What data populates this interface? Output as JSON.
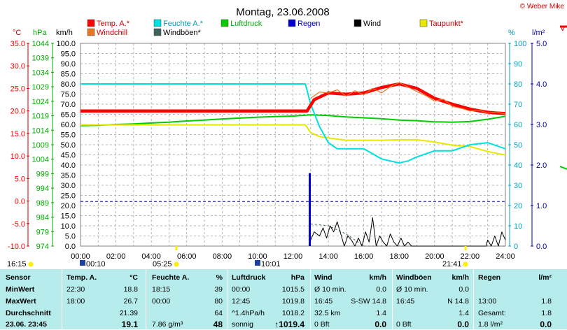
{
  "header": {
    "title": "Montag, 23.06.2008",
    "copyright": "© Weber Mike"
  },
  "legend": [
    {
      "label": "Temp. A.*",
      "color": "#ff0000"
    },
    {
      "label": "Feuchte A.*",
      "color": "#00e0e0"
    },
    {
      "label": "Luftdruck",
      "color": "#00cc00"
    },
    {
      "label": "Regen",
      "color": "#0000cc"
    },
    {
      "label": "Wind",
      "color": "#000000"
    },
    {
      "label": "Taupunkt*",
      "color": "#e8e800"
    },
    {
      "label": "Windchill",
      "color": "#e87722"
    },
    {
      "label": "Windböen*",
      "color": "#406060"
    }
  ],
  "axes": {
    "temp": {
      "unit": "°C",
      "ticks": [
        "35.0",
        "30.0",
        "25.0",
        "20.0",
        "15.0",
        "10.0",
        "5.0",
        "0.0",
        "-5.0",
        "-10.0"
      ],
      "color": "#ff0000"
    },
    "pressure": {
      "unit": "hPa",
      "ticks": [
        "1044",
        "1039",
        "1034",
        "1029",
        "1024",
        "1019",
        "1014",
        "1009",
        "1004",
        "999",
        "994",
        "989",
        "984",
        "979",
        "974"
      ],
      "color": "#00aa00"
    },
    "wind": {
      "unit": "km/h",
      "ticks": [
        "100.0",
        "95.0",
        "90.0",
        "85.0",
        "80.0",
        "75.0",
        "70.0",
        "65.0",
        "60.0",
        "55.0",
        "50.0",
        "45.0",
        "40.0",
        "35.0",
        "30.0",
        "25.0",
        "20.0",
        "15.0",
        "10.0",
        "5.0",
        "0.0"
      ],
      "color": "#000000"
    },
    "humidity": {
      "unit": "%",
      "ticks": [
        "100",
        "90",
        "80",
        "70",
        "60",
        "50",
        "40",
        "30",
        "20",
        "10",
        "0"
      ],
      "color": "#00a0c0"
    },
    "rain": {
      "unit": "l/m²",
      "ticks": [
        "5.0",
        "4.0",
        "3.0",
        "2.0",
        "1.0",
        "0.0"
      ],
      "color": "#0000aa"
    },
    "time": [
      "00:00",
      "02:00",
      "04:00",
      "06:00",
      "08:00",
      "10:00",
      "12:00",
      "14:00",
      "16:00",
      "18:00",
      "20:00",
      "22:00",
      "24:00"
    ]
  },
  "sun": {
    "sunrise": "05:25",
    "sunset": "21:41",
    "moonset": "00:10",
    "moonrise": "10:01",
    "daylength_start": "16:15"
  },
  "chart_data": {
    "type": "line",
    "x_unit": "hours",
    "xlim": [
      0,
      24
    ],
    "series": [
      {
        "name": "Temp. A.*",
        "axis": "temp",
        "x": [
          0,
          12.8,
          13.2,
          14,
          15,
          16,
          17,
          18,
          19,
          20,
          21,
          22,
          23,
          24
        ],
        "y": [
          20.0,
          20.0,
          22.5,
          24.0,
          23.7,
          24.0,
          25.2,
          26.0,
          25.0,
          22.8,
          21.5,
          20.4,
          19.7,
          19.4
        ]
      },
      {
        "name": "Windchill",
        "axis": "temp",
        "x": [
          13.0,
          13.5,
          14,
          14.5,
          15,
          15.5,
          16,
          16.5,
          17,
          17.5,
          18,
          18.5,
          19,
          19.5,
          20,
          20.5,
          21,
          21.5,
          22,
          22.5,
          23,
          23.5,
          24
        ],
        "y": [
          22.8,
          24.2,
          24.0,
          24.7,
          23.3,
          24.5,
          23.6,
          25.0,
          24.0,
          25.4,
          26.3,
          25.3,
          24.3,
          23.4,
          22.2,
          22.6,
          21.0,
          20.6,
          20.0,
          20.2,
          19.5,
          19.8,
          19.3
        ]
      },
      {
        "name": "Feuchte A.*",
        "axis": "humidity",
        "x": [
          0,
          12.7,
          13,
          13.5,
          14,
          14.5,
          15,
          16,
          17,
          18,
          18.5,
          19,
          20,
          21,
          22,
          23,
          24
        ],
        "y": [
          80,
          80,
          70,
          59,
          51,
          48,
          48,
          48,
          43,
          41,
          42,
          44,
          47,
          47,
          50,
          51,
          48
        ]
      },
      {
        "name": "Taupunkt*",
        "axis": "temp",
        "x": [
          0,
          12.7,
          13,
          13.5,
          14,
          15,
          16,
          17,
          18,
          19,
          20,
          21,
          22,
          23,
          24
        ],
        "y": [
          16.9,
          16.9,
          15.2,
          14.3,
          14.0,
          13.5,
          13.5,
          13.5,
          13.6,
          13.6,
          13.1,
          12.4,
          12.1,
          11.0,
          10.2
        ]
      },
      {
        "name": "Luftdruck",
        "axis": "pressure",
        "x": [
          0,
          1,
          2,
          3,
          4,
          5,
          6,
          7,
          8,
          9,
          10,
          11,
          12,
          13,
          14,
          15,
          16,
          17,
          18,
          19,
          20,
          21,
          22,
          23,
          24
        ],
        "y": [
          1015.6,
          1015.7,
          1016.0,
          1016.2,
          1016.5,
          1016.8,
          1017.2,
          1017.5,
          1017.9,
          1018.2,
          1018.5,
          1018.7,
          1018.9,
          1019.3,
          1019.1,
          1018.6,
          1018.3,
          1018.0,
          1017.5,
          1017.3,
          1016.9,
          1016.8,
          1017.0,
          1017.8,
          1018.8
        ]
      },
      {
        "name": "Regen",
        "axis": "rain",
        "x": [
          12.95
        ],
        "y": [
          1.8
        ]
      },
      {
        "name": "Wind",
        "axis": "wind",
        "x": [
          12.9,
          13.0,
          13.2,
          13.5,
          13.7,
          13.9,
          14.1,
          14.3,
          14.5,
          14.7,
          14.9,
          15.1,
          15.3,
          15.5,
          15.7,
          15.9,
          16.1,
          16.3,
          16.5,
          16.7,
          16.9,
          17.1,
          17.3,
          17.5,
          17.7,
          17.9,
          18.1,
          18.3,
          18.5,
          18.7,
          18.9,
          19.5,
          20.0,
          20.5,
          21.0,
          21.5,
          22.0,
          22.5,
          22.9,
          23.0,
          23.2,
          23.4,
          23.6,
          23.8,
          24.0
        ],
        "y": [
          0,
          3,
          7,
          5,
          9,
          4,
          10,
          7,
          12,
          6,
          0,
          5,
          3,
          0,
          4,
          0,
          7,
          2,
          14,
          0,
          5,
          2,
          0,
          6,
          2,
          0,
          4,
          0,
          2,
          0,
          0,
          0,
          0,
          0,
          0,
          0,
          0,
          0,
          0,
          3,
          0,
          5,
          0,
          7,
          3
        ]
      },
      {
        "name": "Windböen*",
        "axis": "wind",
        "x": [
          13,
          14,
          15,
          16,
          24
        ],
        "y": [
          11,
          10,
          6,
          0,
          0
        ]
      }
    ],
    "rain_reference_level": 1.1
  },
  "stats": {
    "header": {
      "sensor": "Sensor",
      "temp": "Temp. A.",
      "temp_unit": "°C",
      "feuchte": "Feuchte A.",
      "feuchte_unit": "%",
      "luftdruck": "Luftdruck",
      "luftdruck_unit": "hPa",
      "wind": "Wind",
      "wind_unit": "km/h",
      "windboen": "Windböen",
      "windboen_unit": "km/h",
      "regen": "Regen",
      "regen_unit": "l/m²"
    },
    "row_labels": [
      "MinWert",
      "MaxWert",
      "Durchschnitt",
      "23.06. 23:45"
    ],
    "temp": [
      [
        "22:30",
        "18.8"
      ],
      [
        "18:00",
        "26.7"
      ],
      [
        "",
        "21.39"
      ],
      [
        "",
        "19.1"
      ]
    ],
    "feuchte": [
      [
        "18:15",
        "39"
      ],
      [
        "00:00",
        "80"
      ],
      [
        "",
        "64"
      ],
      [
        "7.86 g/m³",
        "48"
      ]
    ],
    "luftdruck": [
      [
        "00:00",
        "1015.5"
      ],
      [
        "12:45",
        "1019.8"
      ],
      [
        "^1.4hPa/h",
        "1018.2"
      ],
      [
        "sonnig",
        "↑1019.4"
      ]
    ],
    "wind": [
      [
        "Ø 10 min.",
        "0.0"
      ],
      [
        "16:45",
        "S-SW 14.8"
      ],
      [
        "32.5 km",
        "1.4"
      ],
      [
        "0 Bft",
        "0.0"
      ]
    ],
    "windboen": [
      [
        "Ø 10 min.",
        "0.0"
      ],
      [
        "16:45",
        "N 14.8"
      ],
      [
        "",
        "1.4"
      ],
      [
        "0 Bft",
        "0.0"
      ]
    ],
    "regen": [
      [
        "",
        ""
      ],
      [
        "13:00",
        "1.8"
      ],
      [
        "Gesamt:",
        "1.8"
      ],
      [
        "1.8 l/m²",
        "0.0"
      ]
    ]
  }
}
